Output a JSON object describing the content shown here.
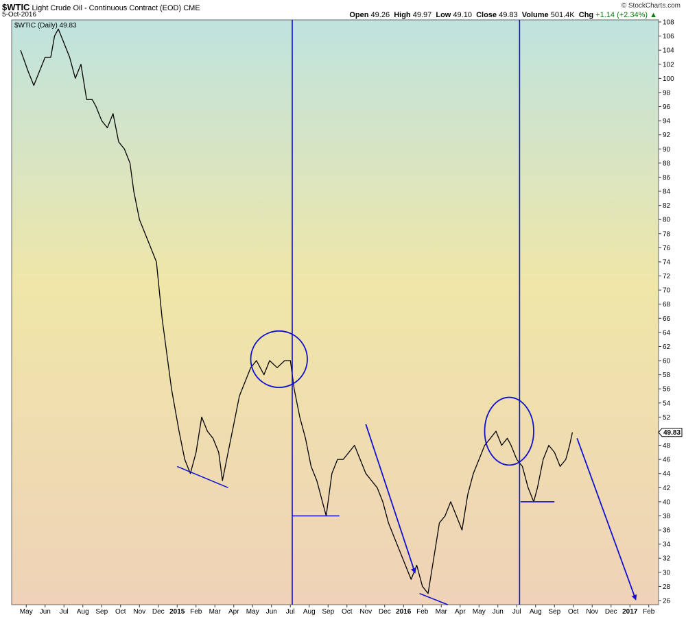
{
  "header": {
    "symbol": "$WTIC",
    "name": "Light Crude Oil - Continuous Contract (EOD)",
    "exchange": "CME",
    "date": "5-Oct-2016",
    "source": "© StockCharts.com",
    "open_label": "Open",
    "open": "49.26",
    "high_label": "High",
    "high": "49.97",
    "low_label": "Low",
    "low": "49.10",
    "close_label": "Close",
    "close": "49.83",
    "volume_label": "Volume",
    "volume": "501.4K",
    "chg_label": "Chg",
    "chg": "+1.14 (+2.34%)",
    "legend": "$WTIC (Daily) 49.83",
    "last_price_tag": "49.83"
  },
  "chart_data": {
    "type": "line",
    "title": "$WTIC Light Crude Oil - Continuous Contract (EOD) CME",
    "ylim": [
      26,
      108
    ],
    "yticks": [
      26,
      28,
      30,
      32,
      34,
      36,
      38,
      40,
      42,
      44,
      46,
      48,
      50,
      52,
      54,
      56,
      58,
      60,
      62,
      64,
      66,
      68,
      70,
      72,
      74,
      76,
      78,
      80,
      82,
      84,
      86,
      88,
      90,
      92,
      94,
      96,
      98,
      100,
      102,
      104,
      106,
      108
    ],
    "x_range_months": [
      0,
      22
    ],
    "x_ticks": [
      {
        "label": "May",
        "m": 0.3,
        "bold": false
      },
      {
        "label": "Jun",
        "m": 1.3,
        "bold": false
      },
      {
        "label": "Jul",
        "m": 2.3,
        "bold": false
      },
      {
        "label": "Aug",
        "m": 3.3,
        "bold": false
      },
      {
        "label": "Sep",
        "m": 4.3,
        "bold": false
      },
      {
        "label": "Oct",
        "m": 5.3,
        "bold": false
      },
      {
        "label": "Nov",
        "m": 6.3,
        "bold": false
      },
      {
        "label": "Dec",
        "m": 7.3,
        "bold": false
      },
      {
        "label": "2015",
        "m": 8.3,
        "bold": true
      },
      {
        "label": "Feb",
        "m": 9.3,
        "bold": false
      },
      {
        "label": "Mar",
        "m": 10.3,
        "bold": false
      },
      {
        "label": "Apr",
        "m": 11.3,
        "bold": false
      },
      {
        "label": "May",
        "m": 12.3,
        "bold": false
      },
      {
        "label": "Jun",
        "m": 13.3,
        "bold": false
      },
      {
        "label": "Jul",
        "m": 14.3,
        "bold": false
      },
      {
        "label": "Aug",
        "m": 15.3,
        "bold": false
      },
      {
        "label": "Sep",
        "m": 16.3,
        "bold": false
      },
      {
        "label": "Oct",
        "m": 17.3,
        "bold": false
      },
      {
        "label": "Nov",
        "m": 18.3,
        "bold": false
      },
      {
        "label": "Dec",
        "m": 19.3,
        "bold": false
      },
      {
        "label": "2016",
        "m": 20.3,
        "bold": true
      },
      {
        "label": "Feb",
        "m": 21.3,
        "bold": false
      },
      {
        "label": "Mar",
        "m": 22.3,
        "bold": false
      },
      {
        "label": "Apr",
        "m": 23.3,
        "bold": false
      },
      {
        "label": "May",
        "m": 24.3,
        "bold": false
      },
      {
        "label": "Jun",
        "m": 25.3,
        "bold": false
      },
      {
        "label": "Jul",
        "m": 26.3,
        "bold": false
      },
      {
        "label": "Aug",
        "m": 27.3,
        "bold": false
      },
      {
        "label": "Sep",
        "m": 28.3,
        "bold": false
      },
      {
        "label": "Oct",
        "m": 29.3,
        "bold": false
      },
      {
        "label": "Nov",
        "m": 30.3,
        "bold": false
      },
      {
        "label": "Dec",
        "m": 31.3,
        "bold": false
      },
      {
        "label": "2017",
        "m": 32.3,
        "bold": true
      },
      {
        "label": "Feb",
        "m": 33.3,
        "bold": false
      }
    ],
    "series": [
      {
        "name": "$WTIC (Daily)",
        "points": [
          [
            0.0,
            104
          ],
          [
            0.4,
            101
          ],
          [
            0.7,
            99
          ],
          [
            1.0,
            101
          ],
          [
            1.3,
            103
          ],
          [
            1.6,
            103
          ],
          [
            1.8,
            106
          ],
          [
            2.0,
            107
          ],
          [
            2.3,
            105
          ],
          [
            2.6,
            103
          ],
          [
            2.9,
            100
          ],
          [
            3.2,
            102
          ],
          [
            3.5,
            97
          ],
          [
            3.8,
            97
          ],
          [
            4.0,
            96
          ],
          [
            4.3,
            94
          ],
          [
            4.6,
            93
          ],
          [
            4.9,
            95
          ],
          [
            5.2,
            91
          ],
          [
            5.5,
            90
          ],
          [
            5.8,
            88
          ],
          [
            6.0,
            84
          ],
          [
            6.3,
            80
          ],
          [
            6.6,
            78
          ],
          [
            6.9,
            76
          ],
          [
            7.2,
            74
          ],
          [
            7.5,
            66
          ],
          [
            7.8,
            60
          ],
          [
            8.0,
            56
          ],
          [
            8.2,
            53
          ],
          [
            8.4,
            50
          ],
          [
            8.7,
            46
          ],
          [
            9.0,
            44
          ],
          [
            9.3,
            47
          ],
          [
            9.6,
            52
          ],
          [
            9.9,
            50
          ],
          [
            10.2,
            49
          ],
          [
            10.5,
            47
          ],
          [
            10.7,
            43
          ],
          [
            11.0,
            47
          ],
          [
            11.3,
            51
          ],
          [
            11.6,
            55
          ],
          [
            11.9,
            57
          ],
          [
            12.2,
            59
          ],
          [
            12.5,
            60
          ],
          [
            12.9,
            58
          ],
          [
            13.2,
            60
          ],
          [
            13.6,
            59
          ],
          [
            14.0,
            60
          ],
          [
            14.3,
            60
          ],
          [
            14.5,
            56
          ],
          [
            14.8,
            52
          ],
          [
            15.1,
            49
          ],
          [
            15.4,
            45
          ],
          [
            15.7,
            43
          ],
          [
            16.0,
            40
          ],
          [
            16.2,
            38
          ],
          [
            16.5,
            44
          ],
          [
            16.8,
            46
          ],
          [
            17.1,
            46
          ],
          [
            17.4,
            47
          ],
          [
            17.7,
            48
          ],
          [
            18.0,
            46
          ],
          [
            18.3,
            44
          ],
          [
            18.6,
            43
          ],
          [
            18.9,
            42
          ],
          [
            19.2,
            40
          ],
          [
            19.5,
            37
          ],
          [
            19.8,
            35
          ],
          [
            20.1,
            33
          ],
          [
            20.4,
            31
          ],
          [
            20.7,
            29
          ],
          [
            21.0,
            31
          ],
          [
            21.3,
            28
          ],
          [
            21.6,
            27
          ],
          [
            21.9,
            32
          ],
          [
            22.2,
            37
          ],
          [
            22.5,
            38
          ],
          [
            22.8,
            40
          ],
          [
            23.1,
            38
          ],
          [
            23.4,
            36
          ],
          [
            23.7,
            41
          ],
          [
            24.0,
            44
          ],
          [
            24.3,
            46
          ],
          [
            24.6,
            48
          ],
          [
            24.9,
            49
          ],
          [
            25.2,
            50
          ],
          [
            25.5,
            48
          ],
          [
            25.8,
            49
          ],
          [
            26.0,
            48
          ],
          [
            26.3,
            46
          ],
          [
            26.6,
            45
          ],
          [
            26.9,
            42
          ],
          [
            27.2,
            40
          ],
          [
            27.4,
            42
          ],
          [
            27.7,
            46
          ],
          [
            28.0,
            48
          ],
          [
            28.3,
            47
          ],
          [
            28.6,
            45
          ],
          [
            28.9,
            46
          ],
          [
            29.1,
            48
          ],
          [
            29.25,
            49.83
          ]
        ]
      }
    ],
    "annotations": {
      "vertical_lines_m": [
        14.4,
        26.45
      ],
      "lines": [
        [
          [
            8.3,
            45
          ],
          [
            11.0,
            42
          ]
        ],
        [
          [
            14.4,
            38
          ],
          [
            16.9,
            38
          ]
        ],
        [
          [
            26.5,
            40
          ],
          [
            28.3,
            40
          ]
        ],
        [
          [
            21.15,
            27
          ],
          [
            22.65,
            25.4
          ]
        ]
      ],
      "arrows": [
        [
          [
            18.3,
            51
          ],
          [
            20.9,
            30
          ]
        ],
        [
          [
            29.5,
            49
          ],
          [
            32.6,
            26.2
          ]
        ]
      ],
      "ellipses": [
        {
          "cm": 13.7,
          "cp": 60.2,
          "rm": 1.5,
          "rp": 4.0
        },
        {
          "cm": 25.9,
          "cp": 50.0,
          "rm": 1.3,
          "rp": 4.8
        }
      ]
    }
  }
}
